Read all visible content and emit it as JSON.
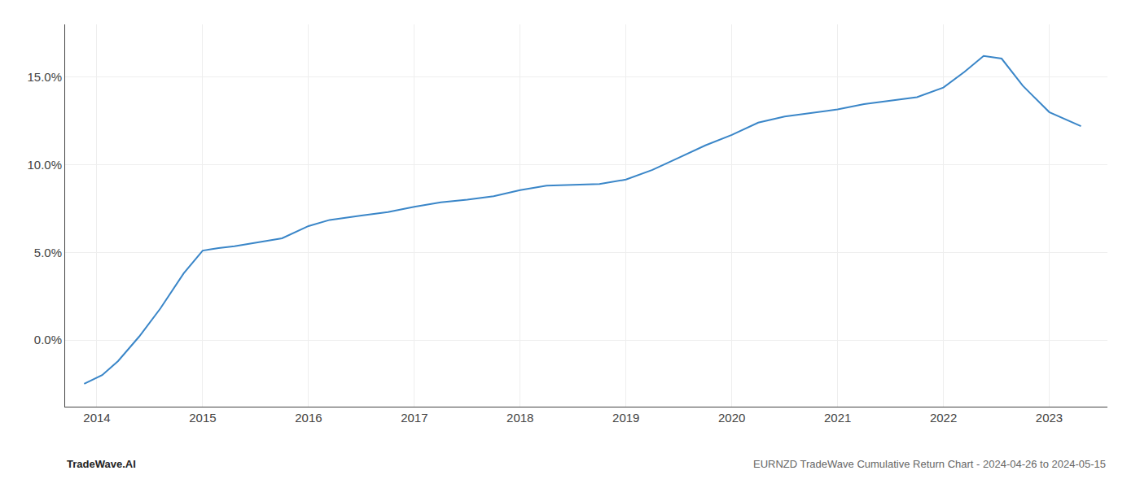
{
  "chart_data": {
    "type": "line",
    "x": [
      2013.88,
      2014.05,
      2014.2,
      2014.4,
      2014.6,
      2014.82,
      2015.0,
      2015.15,
      2015.3,
      2015.5,
      2015.75,
      2016.0,
      2016.2,
      2016.5,
      2016.75,
      2017.0,
      2017.25,
      2017.5,
      2017.75,
      2018.0,
      2018.25,
      2018.5,
      2018.75,
      2019.0,
      2019.25,
      2019.5,
      2019.75,
      2020.0,
      2020.25,
      2020.5,
      2020.75,
      2021.0,
      2021.25,
      2021.5,
      2021.75,
      2022.0,
      2022.2,
      2022.38,
      2022.55,
      2022.75,
      2023.0,
      2023.3
    ],
    "values": [
      -2.5,
      -2.0,
      -1.2,
      0.2,
      1.8,
      3.8,
      5.1,
      5.25,
      5.35,
      5.55,
      5.8,
      6.5,
      6.85,
      7.1,
      7.3,
      7.6,
      7.85,
      8.0,
      8.2,
      8.55,
      8.8,
      8.85,
      8.9,
      9.15,
      9.7,
      10.4,
      11.1,
      11.7,
      12.4,
      12.75,
      12.95,
      13.15,
      13.45,
      13.65,
      13.85,
      14.4,
      15.3,
      16.2,
      16.05,
      14.5,
      13.0,
      12.2
    ],
    "color": "#3a86c8",
    "xlim": [
      2013.7,
      2023.55
    ],
    "ylim": [
      -3.8,
      18.0
    ],
    "xticks": [
      2014,
      2015,
      2016,
      2017,
      2018,
      2019,
      2020,
      2021,
      2022,
      2023
    ],
    "yticks": [
      {
        "value": 0.0,
        "label": "0.0%"
      },
      {
        "value": 5.0,
        "label": "5.0%"
      },
      {
        "value": 10.0,
        "label": "10.0%"
      },
      {
        "value": 15.0,
        "label": "15.0%"
      }
    ],
    "grid": true,
    "annotations": [
      "TradeWave.AI",
      "EURNZD TradeWave Cumulative Return Chart - 2024-04-26 to 2024-05-15"
    ]
  }
}
